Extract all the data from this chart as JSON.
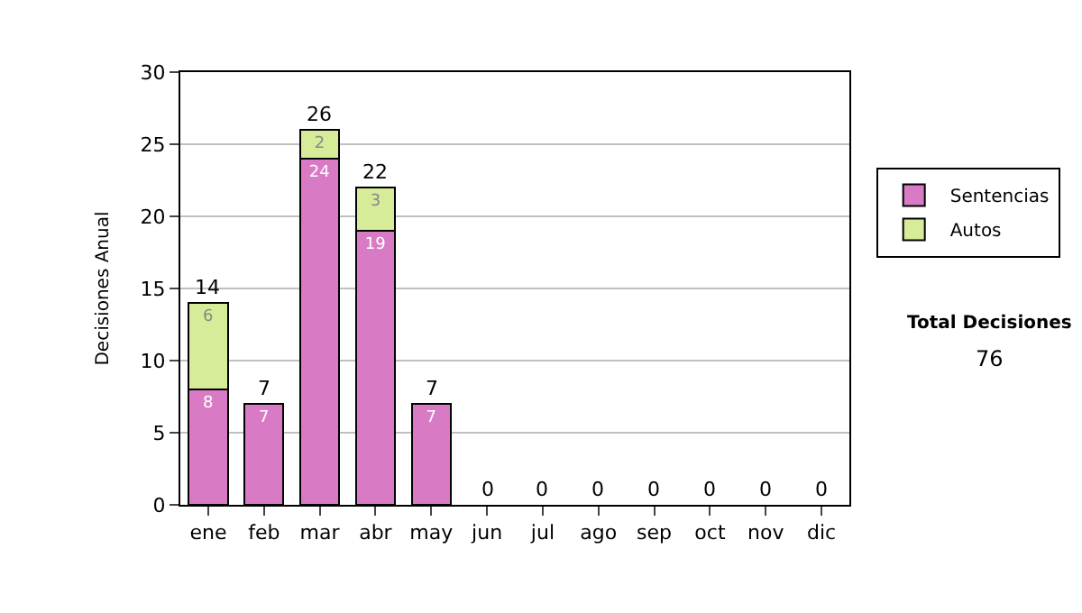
{
  "chart_data": {
    "type": "bar",
    "stacked": true,
    "ylabel": "Decisiones Anual",
    "categories": [
      "ene",
      "feb",
      "mar",
      "abr",
      "may",
      "jun",
      "jul",
      "ago",
      "sep",
      "oct",
      "nov",
      "dic"
    ],
    "series": [
      {
        "name": "Sentencias",
        "color": "#d97bc4",
        "values": [
          8,
          7,
          24,
          19,
          7,
          0,
          0,
          0,
          0,
          0,
          0,
          0
        ],
        "value_labels": [
          "8",
          "7",
          "24",
          "19",
          "7",
          null,
          null,
          null,
          null,
          null,
          null,
          null
        ]
      },
      {
        "name": "Autos",
        "color": "#d6ec98",
        "values": [
          6,
          0,
          2,
          3,
          0,
          0,
          0,
          0,
          0,
          0,
          0,
          0
        ],
        "value_labels": [
          "6",
          null,
          "2",
          "3",
          null,
          null,
          null,
          null,
          null,
          null,
          null,
          null
        ]
      }
    ],
    "totals": [
      "14",
      "7",
      "26",
      "22",
      "7",
      "0",
      "0",
      "0",
      "0",
      "0",
      "0",
      "0"
    ],
    "ylim": [
      0,
      30
    ],
    "yticks": [
      0,
      5,
      10,
      15,
      20,
      25,
      30
    ],
    "grid": "y",
    "legend": "right",
    "annotations": [
      "Total Decisiones",
      "76"
    ]
  }
}
